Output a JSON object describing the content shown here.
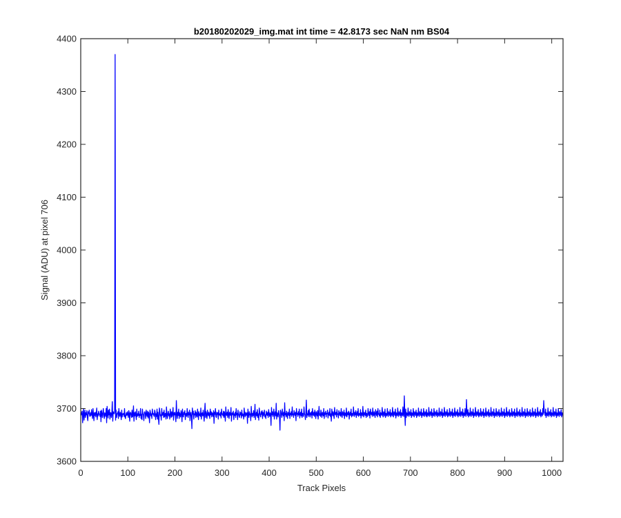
{
  "chart_data": {
    "type": "line",
    "title": "b20180202029_img.mat int time = 42.8173 sec  NaN nm BS04",
    "xlabel": "Track Pixels",
    "ylabel": "Signal (ADU) at pixel 706",
    "xlim": [
      0,
      1024
    ],
    "ylim": [
      3600,
      4400
    ],
    "x_ticks": [
      0,
      100,
      200,
      300,
      400,
      500,
      600,
      700,
      800,
      900,
      1000
    ],
    "y_ticks": [
      3600,
      3700,
      3800,
      3900,
      4000,
      4100,
      4200,
      4300,
      4400
    ],
    "grid": false,
    "series": [
      {
        "color": "#0000ff",
        "x_start": 1,
        "x_step": 1,
        "values": [
          3687,
          3693,
          3695,
          3673,
          3688,
          3700,
          3678,
          3689,
          3697,
          3683,
          3692,
          3688,
          3696,
          3684,
          3677,
          3694,
          3690,
          3697,
          3686,
          3685,
          3692,
          3687,
          3698,
          3689,
          3681,
          3700,
          3690,
          3677,
          3692,
          3687,
          3693,
          3684,
          3690,
          3701,
          3679,
          3690,
          3686,
          3695,
          3690,
          3688,
          3685,
          3695,
          3675,
          3697,
          3690,
          3683,
          3692,
          3700,
          3686,
          3681,
          3692,
          3690,
          3685,
          3700,
          3673,
          3704,
          3690,
          3682,
          3697,
          3688,
          3699,
          3680,
          3692,
          3692,
          3683,
          3690,
          3713,
          3676,
          3694,
          3692,
          3690,
          3695,
          4370,
          3678,
          3697,
          3683,
          3690,
          3690,
          3694,
          3681,
          3700,
          3688,
          3685,
          3693,
          3690,
          3679,
          3697,
          3684,
          3690,
          3689,
          3691,
          3685,
          3700,
          3684,
          3681,
          3688,
          3692,
          3687,
          3694,
          3689,
          3683,
          3696,
          3692,
          3676,
          3691,
          3693,
          3688,
          3683,
          3697,
          3684,
          3688,
          3705,
          3676,
          3692,
          3686,
          3694,
          3687,
          3679,
          3699,
          3685,
          3690,
          3687,
          3695,
          3683,
          3689,
          3687,
          3700,
          3681,
          3689,
          3679,
          3699,
          3690,
          3688,
          3677,
          3692,
          3694,
          3690,
          3681,
          3697,
          3689,
          3685,
          3695,
          3682,
          3693,
          3689,
          3673,
          3697,
          3693,
          3686,
          3690,
          3681,
          3699,
          3689,
          3691,
          3687,
          3685,
          3697,
          3693,
          3679,
          3690,
          3685,
          3699,
          3680,
          3693,
          3681,
          3670,
          3701,
          3694,
          3686,
          3688,
          3678,
          3700,
          3687,
          3689,
          3693,
          3683,
          3697,
          3684,
          3690,
          3691,
          3680,
          3703,
          3688,
          3681,
          3691,
          3695,
          3686,
          3690,
          3680,
          3699,
          3690,
          3683,
          3694,
          3685,
          3690,
          3702,
          3678,
          3692,
          3688,
          3693,
          3686,
          3675,
          3715,
          3690,
          3681,
          3693,
          3687,
          3699,
          3681,
          3692,
          3688,
          3684,
          3696,
          3692,
          3675,
          3699,
          3686,
          3684,
          3693,
          3689,
          3696,
          3679,
          3690,
          3691,
          3685,
          3700,
          3689,
          3683,
          3693,
          3688,
          3697,
          3677,
          3690,
          3693,
          3685,
          3662,
          3701,
          3689,
          3695,
          3680,
          3690,
          3688,
          3696,
          3683,
          3693,
          3688,
          3684,
          3699,
          3690,
          3679,
          3694,
          3687,
          3690,
          3685,
          3701,
          3680,
          3690,
          3692,
          3686,
          3697,
          3688,
          3676,
          3694,
          3710,
          3683,
          3694,
          3688,
          3681,
          3697,
          3690,
          3686,
          3693,
          3689,
          3681,
          3699,
          3688,
          3694,
          3684,
          3692,
          3690,
          3685,
          3696,
          3672,
          3693,
          3689,
          3700,
          3685,
          3683,
          3693,
          3689,
          3692,
          3680,
          3697,
          3688,
          3690,
          3686,
          3693,
          3682,
          3699,
          3689,
          3690,
          3686,
          3695,
          3683,
          3694,
          3689,
          3676,
          3703,
          3688,
          3687,
          3693,
          3683,
          3698,
          3690,
          3681,
          3693,
          3689,
          3687,
          3702,
          3676,
          3690,
          3692,
          3688,
          3695,
          3679,
          3690,
          3687,
          3693,
          3683,
          3700,
          3688,
          3691,
          3679,
          3697,
          3690,
          3686,
          3683,
          3694,
          3688,
          3692,
          3682,
          3697,
          3686,
          3690,
          3688,
          3680,
          3701,
          3689,
          3684,
          3693,
          3687,
          3690,
          3692,
          3672,
          3699,
          3689,
          3683,
          3694,
          3688,
          3690,
          3677,
          3704,
          3689,
          3684,
          3691,
          3687,
          3696,
          3683,
          3690,
          3708,
          3679,
          3688,
          3693,
          3686,
          3698,
          3683,
          3690,
          3678,
          3701,
          3692,
          3687,
          3684,
          3694,
          3689,
          3696,
          3681,
          3693,
          3686,
          3690,
          3697,
          3684,
          3688,
          3681,
          3695,
          3690,
          3687,
          3693,
          3683,
          3698,
          3689,
          3685,
          3692,
          3690,
          3668,
          3702,
          3688,
          3694,
          3685,
          3691,
          3699,
          3680,
          3690,
          3694,
          3686,
          3710,
          3680,
          3692,
          3689,
          3684,
          3696,
          3690,
          3686,
          3659,
          3697,
          3694,
          3688,
          3683,
          3699,
          3690,
          3686,
          3693,
          3677,
          3711,
          3688,
          3691,
          3684,
          3695,
          3689,
          3681,
          3693,
          3690,
          3687,
          3699,
          3681,
          3691,
          3688,
          3694,
          3685,
          3703,
          3688,
          3690,
          3683,
          3696,
          3690,
          3687,
          3693,
          3677,
          3700,
          3689,
          3691,
          3685,
          3694,
          3688,
          3699,
          3682,
          3690,
          3693,
          3686,
          3699,
          3683,
          3691,
          3689,
          3685,
          3703,
          3690,
          3688,
          3679,
          3693,
          3716,
          3683,
          3690,
          3688,
          3696,
          3685,
          3699,
          3690,
          3684,
          3692,
          3688,
          3694,
          3682,
          3700,
          3689,
          3687,
          3693,
          3685,
          3697,
          3690,
          3681,
          3694,
          3690,
          3686,
          3696,
          3680,
          3691,
          3704,
          3687,
          3690,
          3685,
          3697,
          3689,
          3683,
          3693,
          3690,
          3686,
          3700,
          3681,
          3692,
          3689,
          3695,
          3684,
          3691,
          3690,
          3697,
          3682,
          3689,
          3693,
          3687,
          3700,
          3685,
          3690,
          3676,
          3699,
          3692,
          3686,
          3694,
          3689,
          3681,
          3702,
          3690,
          3688,
          3693,
          3684,
          3698,
          3689,
          3690,
          3682,
          3696,
          3692,
          3687,
          3693,
          3685,
          3700,
          3689,
          3683,
          3694,
          3690,
          3687,
          3697,
          3681,
          3692,
          3690,
          3686,
          3701,
          3684,
          3689,
          3693,
          3688,
          3695,
          3680,
          3690,
          3693,
          3687,
          3699,
          3684,
          3691,
          3689,
          3686,
          3703,
          3690,
          3685,
          3693,
          3688,
          3696,
          3683,
          3690,
          3694,
          3687,
          3700,
          3685,
          3690,
          3691,
          3687,
          3698,
          3682,
          3692,
          3690,
          3686,
          3704,
          3689,
          3684,
          3693,
          3690,
          3687,
          3697,
          3683,
          3691,
          3689,
          3685,
          3700,
          3690,
          3687,
          3694,
          3682,
          3699,
          3691,
          3688,
          3693,
          3685,
          3701,
          3689,
          3686,
          3694,
          3690,
          3683,
          3698,
          3691,
          3687,
          3695,
          3684,
          3700,
          3689,
          3690,
          3686,
          3697,
          3683,
          3692,
          3690,
          3687,
          3702,
          3689,
          3684,
          3694,
          3691,
          3686,
          3699,
          3683,
          3691,
          3690,
          3686,
          3700,
          3689,
          3685,
          3694,
          3691,
          3687,
          3698,
          3684,
          3692,
          3690,
          3686,
          3702,
          3689,
          3684,
          3694,
          3691,
          3687,
          3699,
          3682,
          3692,
          3690,
          3686,
          3701,
          3689,
          3685,
          3694,
          3690,
          3687,
          3698,
          3683,
          3692,
          3690,
          3686,
          3703,
          3689,
          3685,
          3724,
          3691,
          3668,
          3699,
          3683,
          3692,
          3690,
          3686,
          3701,
          3689,
          3685,
          3694,
          3690,
          3687,
          3698,
          3683,
          3692,
          3690,
          3686,
          3700,
          3689,
          3684,
          3694,
          3691,
          3687,
          3697,
          3683,
          3692,
          3690,
          3686,
          3701,
          3689,
          3685,
          3694,
          3691,
          3687,
          3699,
          3683,
          3692,
          3690,
          3686,
          3700,
          3689,
          3685,
          3694,
          3691,
          3686,
          3698,
          3684,
          3692,
          3690,
          3686,
          3702,
          3689,
          3685,
          3694,
          3691,
          3687,
          3699,
          3683,
          3692,
          3690,
          3686,
          3700,
          3689,
          3685,
          3694,
          3691,
          3687,
          3697,
          3684,
          3692,
          3690,
          3686,
          3701,
          3689,
          3685,
          3694,
          3691,
          3687,
          3699,
          3683,
          3692,
          3690,
          3686,
          3702,
          3689,
          3685,
          3694,
          3691,
          3687,
          3698,
          3684,
          3692,
          3690,
          3686,
          3700,
          3689,
          3685,
          3694,
          3691,
          3687,
          3699,
          3683,
          3692,
          3690,
          3686,
          3701,
          3689,
          3685,
          3694,
          3691,
          3687,
          3698,
          3684,
          3692,
          3690,
          3686,
          3702,
          3689,
          3685,
          3694,
          3691,
          3687,
          3699,
          3683,
          3692,
          3690,
          3686,
          3700,
          3689,
          3685,
          3717,
          3691,
          3687,
          3698,
          3684,
          3692,
          3690,
          3686,
          3701,
          3689,
          3685,
          3694,
          3691,
          3687,
          3699,
          3683,
          3692,
          3690,
          3686,
          3702,
          3689,
          3685,
          3694,
          3691,
          3687,
          3698,
          3684,
          3692,
          3690,
          3686,
          3700,
          3689,
          3685,
          3694,
          3691,
          3687,
          3699,
          3683,
          3692,
          3690,
          3686,
          3701,
          3689,
          3685,
          3694,
          3691,
          3687,
          3698,
          3684,
          3692,
          3690,
          3686,
          3702,
          3689,
          3685,
          3694,
          3691,
          3687,
          3699,
          3683,
          3692,
          3690,
          3686,
          3700,
          3689,
          3685,
          3694,
          3691,
          3687,
          3698,
          3684,
          3692,
          3690,
          3686,
          3701,
          3689,
          3685,
          3694,
          3691,
          3687,
          3699,
          3683,
          3692,
          3690,
          3686,
          3702,
          3689,
          3685,
          3694,
          3691,
          3687,
          3698,
          3684,
          3692,
          3690,
          3686,
          3700,
          3689,
          3685,
          3694,
          3691,
          3687,
          3699,
          3683,
          3692,
          3690,
          3686,
          3701,
          3689,
          3685,
          3694,
          3691,
          3687,
          3698,
          3684,
          3692,
          3690,
          3686,
          3702,
          3689,
          3685,
          3694,
          3691,
          3687,
          3699,
          3683,
          3692,
          3690,
          3686,
          3700,
          3689,
          3685,
          3694,
          3691,
          3687,
          3698,
          3684,
          3692,
          3690,
          3686,
          3701,
          3689,
          3685,
          3694,
          3691,
          3687,
          3699,
          3683,
          3692,
          3690,
          3686,
          3702,
          3689,
          3685,
          3694,
          3691,
          3687,
          3698,
          3684,
          3692,
          3690,
          3686,
          3700,
          3689,
          3715,
          3694,
          3691,
          3687,
          3699,
          3683,
          3692,
          3690,
          3686,
          3701,
          3689,
          3685,
          3694,
          3691,
          3687,
          3698,
          3684,
          3692,
          3690,
          3686,
          3702,
          3689,
          3685,
          3694,
          3691,
          3687,
          3699,
          3683,
          3692,
          3690,
          3686,
          3700,
          3689,
          3685,
          3694,
          3691,
          3687,
          3698,
          3684,
          3692,
          3690,
          3686
        ]
      }
    ]
  }
}
